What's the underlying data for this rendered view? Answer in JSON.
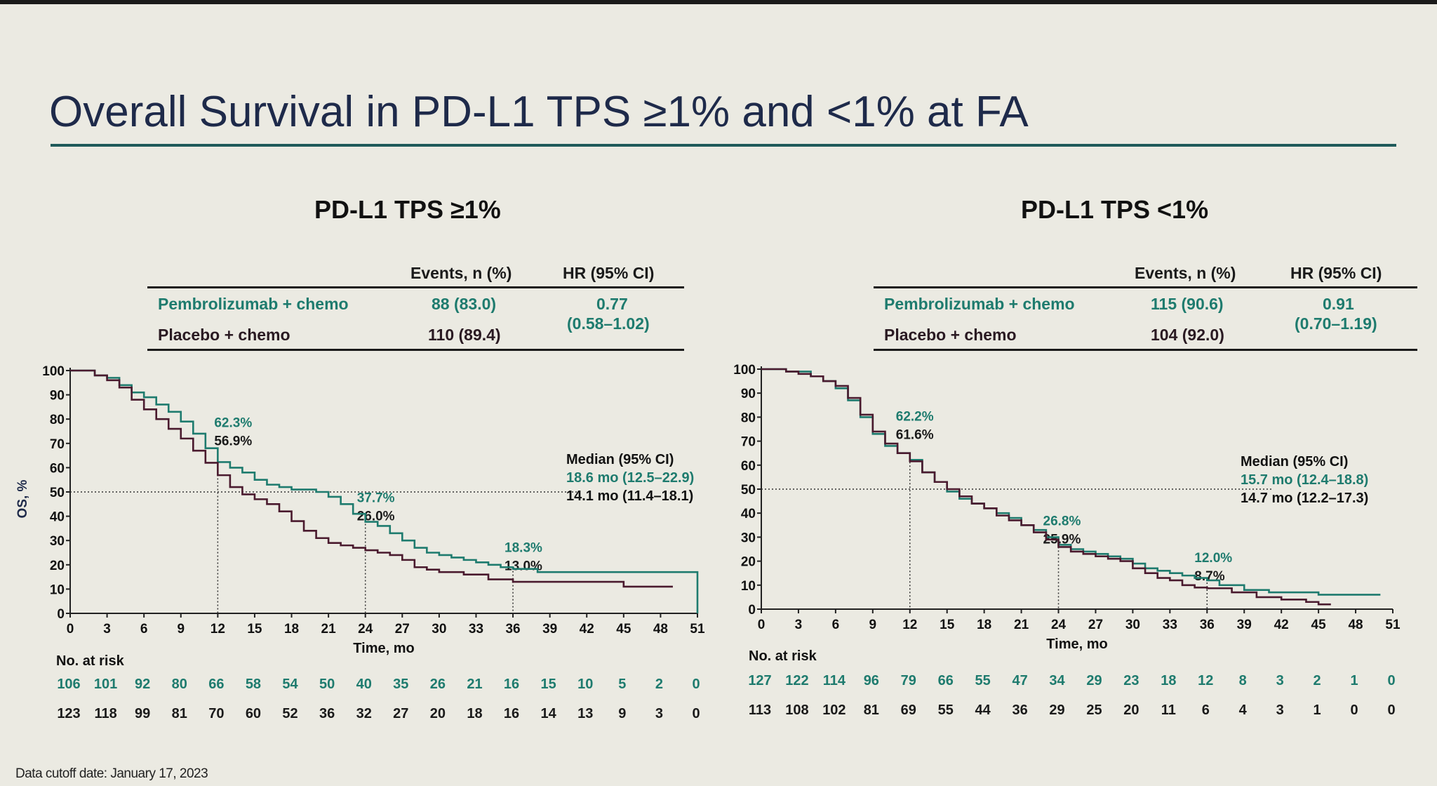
{
  "slide_title": "Overall Survival in PD-L1 TPS ≥1% and <1% at FA",
  "cutoff_note": "Data cutoff date: January 17, 2023",
  "colors": {
    "pembro": "#1e7b6e",
    "placebo": "#4a1a2e",
    "title": "#1e2a4a",
    "rule": "#1f5a5a",
    "background": "#ebeae2"
  },
  "panels": [
    {
      "title": "PD-L1 TPS ≥1%",
      "table": {
        "headers": [
          "Events, n (%)",
          "HR (95% CI)"
        ],
        "rows": [
          {
            "arm": "Pembrolizumab + chemo",
            "events": "88 (83.0)"
          },
          {
            "arm": "Placebo + chemo",
            "events": "110 (89.4)"
          }
        ],
        "hr": "0.77",
        "hr_ci": "(0.58–1.02)"
      },
      "median": {
        "heading": "Median (95% CI)",
        "pembro": "18.6 mo (12.5–22.9)",
        "placebo": "14.1 mo (11.4–18.1)"
      },
      "landmark_labels": [
        {
          "pembro": "62.3%",
          "placebo": "56.9%"
        },
        {
          "pembro": "37.7%",
          "placebo": "26.0%"
        },
        {
          "pembro": "18.3%",
          "placebo": "13.0%"
        }
      ],
      "at_risk": {
        "heading": "No. at risk",
        "pembro": [
          "106",
          "101",
          "92",
          "80",
          "66",
          "58",
          "54",
          "50",
          "40",
          "35",
          "26",
          "21",
          "16",
          "15",
          "10",
          "5",
          "2",
          "0"
        ],
        "placebo": [
          "123",
          "118",
          "99",
          "81",
          "70",
          "60",
          "52",
          "36",
          "32",
          "27",
          "20",
          "18",
          "16",
          "14",
          "13",
          "9",
          "3",
          "0"
        ]
      }
    },
    {
      "title": "PD-L1 TPS <1%",
      "table": {
        "headers": [
          "Events, n (%)",
          "HR (95% CI)"
        ],
        "rows": [
          {
            "arm": "Pembrolizumab + chemo",
            "events": "115 (90.6)"
          },
          {
            "arm": "Placebo + chemo",
            "events": "104 (92.0)"
          }
        ],
        "hr": "0.91",
        "hr_ci": "(0.70–1.19)"
      },
      "median": {
        "heading": "Median (95% CI)",
        "pembro": "15.7 mo (12.4–18.8)",
        "placebo": "14.7 mo (12.2–17.3)"
      },
      "landmark_labels": [
        {
          "pembro": "62.2%",
          "placebo": "61.6%"
        },
        {
          "pembro": "26.8%",
          "placebo": "25.9%"
        },
        {
          "pembro": "12.0%",
          "placebo": "8.7%"
        }
      ],
      "at_risk": {
        "heading": "No. at risk",
        "pembro": [
          "127",
          "122",
          "114",
          "96",
          "79",
          "66",
          "55",
          "47",
          "34",
          "29",
          "23",
          "18",
          "12",
          "8",
          "3",
          "2",
          "1",
          "0"
        ],
        "placebo": [
          "113",
          "108",
          "102",
          "81",
          "69",
          "55",
          "44",
          "36",
          "29",
          "25",
          "20",
          "11",
          "6",
          "4",
          "3",
          "1",
          "0",
          "0"
        ]
      }
    }
  ],
  "chart_data": [
    {
      "type": "line",
      "title": "PD-L1 TPS ≥1%",
      "xlabel": "Time, mo",
      "ylabel": "OS, %",
      "xlim": [
        0,
        51
      ],
      "ylim": [
        0,
        100
      ],
      "x_ticks": [
        0,
        3,
        6,
        9,
        12,
        15,
        18,
        21,
        24,
        27,
        30,
        33,
        36,
        39,
        42,
        45,
        48,
        51
      ],
      "y_ticks": [
        0,
        10,
        20,
        30,
        40,
        50,
        60,
        70,
        80,
        90,
        100
      ],
      "reference_y": 50,
      "landmarks_x": [
        12,
        24,
        36
      ],
      "series": [
        {
          "name": "Pembrolizumab + chemo",
          "points": [
            [
              0,
              100
            ],
            [
              2,
              98
            ],
            [
              3,
              97
            ],
            [
              4,
              94
            ],
            [
              5,
              91
            ],
            [
              6,
              89
            ],
            [
              7,
              86
            ],
            [
              8,
              83
            ],
            [
              9,
              79
            ],
            [
              10,
              74
            ],
            [
              11,
              68
            ],
            [
              12,
              62.3
            ],
            [
              13,
              60
            ],
            [
              14,
              58
            ],
            [
              15,
              55
            ],
            [
              16,
              53
            ],
            [
              17,
              52
            ],
            [
              18,
              51
            ],
            [
              19,
              51
            ],
            [
              20,
              50
            ],
            [
              21,
              48
            ],
            [
              22,
              45
            ],
            [
              23,
              41
            ],
            [
              24,
              37.7
            ],
            [
              25,
              36
            ],
            [
              26,
              33
            ],
            [
              27,
              30
            ],
            [
              28,
              27
            ],
            [
              29,
              25
            ],
            [
              30,
              24
            ],
            [
              31,
              23
            ],
            [
              32,
              22
            ],
            [
              33,
              21
            ],
            [
              34,
              20
            ],
            [
              35,
              19
            ],
            [
              36,
              18.3
            ],
            [
              38,
              17
            ],
            [
              40,
              17
            ],
            [
              45,
              17
            ],
            [
              48,
              17
            ],
            [
              51,
              17
            ],
            [
              51,
              0
            ]
          ]
        },
        {
          "name": "Placebo + chemo",
          "points": [
            [
              0,
              100
            ],
            [
              2,
              98
            ],
            [
              3,
              96
            ],
            [
              4,
              93
            ],
            [
              5,
              88
            ],
            [
              6,
              84
            ],
            [
              7,
              80
            ],
            [
              8,
              76
            ],
            [
              9,
              72
            ],
            [
              10,
              67
            ],
            [
              11,
              62
            ],
            [
              12,
              56.9
            ],
            [
              13,
              52
            ],
            [
              14,
              49
            ],
            [
              15,
              47
            ],
            [
              16,
              45
            ],
            [
              17,
              42
            ],
            [
              18,
              38
            ],
            [
              19,
              34
            ],
            [
              20,
              31
            ],
            [
              21,
              29
            ],
            [
              22,
              28
            ],
            [
              23,
              27
            ],
            [
              24,
              26
            ],
            [
              25,
              25
            ],
            [
              26,
              24
            ],
            [
              27,
              22
            ],
            [
              28,
              19
            ],
            [
              29,
              18
            ],
            [
              30,
              17
            ],
            [
              32,
              16
            ],
            [
              34,
              14
            ],
            [
              36,
              13
            ],
            [
              40,
              13
            ],
            [
              45,
              11
            ],
            [
              49,
              11
            ]
          ]
        }
      ]
    },
    {
      "type": "line",
      "title": "PD-L1 TPS <1%",
      "xlabel": "Time, mo",
      "ylabel": "OS, %",
      "xlim": [
        0,
        51
      ],
      "ylim": [
        0,
        100
      ],
      "x_ticks": [
        0,
        3,
        6,
        9,
        12,
        15,
        18,
        21,
        24,
        27,
        30,
        33,
        36,
        39,
        42,
        45,
        48,
        51
      ],
      "y_ticks": [
        0,
        10,
        20,
        30,
        40,
        50,
        60,
        70,
        80,
        90,
        100
      ],
      "reference_y": 50,
      "landmarks_x": [
        12,
        24,
        36
      ],
      "series": [
        {
          "name": "Pembrolizumab + chemo",
          "points": [
            [
              0,
              100
            ],
            [
              2,
              99
            ],
            [
              4,
              97
            ],
            [
              5,
              95
            ],
            [
              6,
              92
            ],
            [
              7,
              87
            ],
            [
              8,
              80
            ],
            [
              9,
              73
            ],
            [
              10,
              68
            ],
            [
              11,
              65
            ],
            [
              12,
              62.2
            ],
            [
              13,
              57
            ],
            [
              14,
              53
            ],
            [
              15,
              49
            ],
            [
              16,
              46
            ],
            [
              17,
              44
            ],
            [
              18,
              42
            ],
            [
              19,
              40
            ],
            [
              20,
              38
            ],
            [
              21,
              35
            ],
            [
              22,
              33
            ],
            [
              23,
              30
            ],
            [
              24,
              26.8
            ],
            [
              25,
              25
            ],
            [
              26,
              24
            ],
            [
              27,
              23
            ],
            [
              28,
              22
            ],
            [
              29,
              21
            ],
            [
              30,
              19
            ],
            [
              31,
              17
            ],
            [
              32,
              16
            ],
            [
              33,
              15
            ],
            [
              34,
              14
            ],
            [
              35,
              13
            ],
            [
              36,
              12
            ],
            [
              37,
              10
            ],
            [
              39,
              8
            ],
            [
              41,
              7
            ],
            [
              45,
              6
            ],
            [
              50,
              6
            ]
          ]
        },
        {
          "name": "Placebo + chemo",
          "points": [
            [
              0,
              100
            ],
            [
              2,
              99
            ],
            [
              3,
              98
            ],
            [
              4,
              97
            ],
            [
              5,
              95
            ],
            [
              6,
              93
            ],
            [
              7,
              88
            ],
            [
              8,
              81
            ],
            [
              9,
              74
            ],
            [
              10,
              69
            ],
            [
              11,
              65
            ],
            [
              12,
              61.6
            ],
            [
              13,
              57
            ],
            [
              14,
              53
            ],
            [
              15,
              50
            ],
            [
              16,
              47
            ],
            [
              17,
              44
            ],
            [
              18,
              42
            ],
            [
              19,
              39
            ],
            [
              20,
              37
            ],
            [
              21,
              35
            ],
            [
              22,
              32
            ],
            [
              23,
              29
            ],
            [
              24,
              25.9
            ],
            [
              25,
              24
            ],
            [
              26,
              23
            ],
            [
              27,
              22
            ],
            [
              28,
              21
            ],
            [
              29,
              20
            ],
            [
              30,
              17
            ],
            [
              31,
              15
            ],
            [
              32,
              13
            ],
            [
              33,
              12
            ],
            [
              34,
              10
            ],
            [
              35,
              9
            ],
            [
              36,
              8.7
            ],
            [
              38,
              7
            ],
            [
              40,
              5
            ],
            [
              42,
              4
            ],
            [
              44,
              3
            ],
            [
              45,
              2
            ],
            [
              46,
              2
            ]
          ]
        }
      ]
    }
  ]
}
